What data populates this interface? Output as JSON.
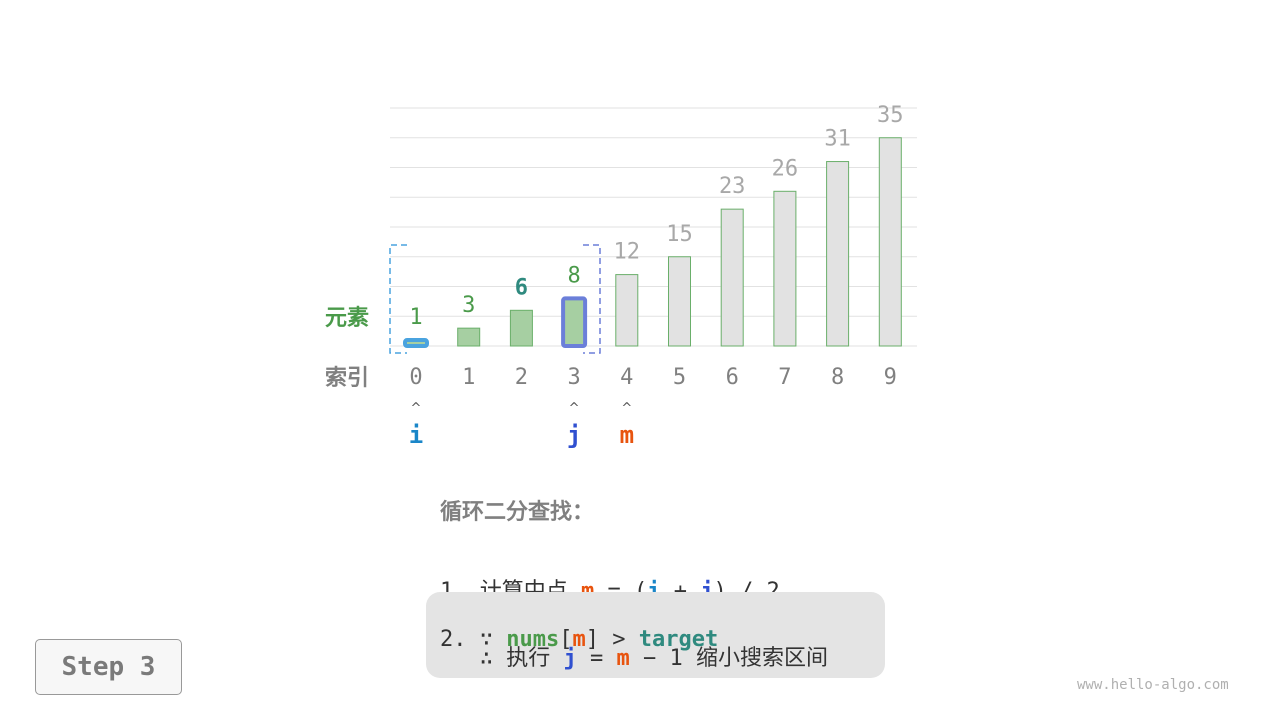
{
  "chart_data": {
    "type": "bar",
    "categories": [
      "0",
      "1",
      "2",
      "3",
      "4",
      "5",
      "6",
      "7",
      "8",
      "9"
    ],
    "values": [
      1,
      3,
      6,
      8,
      12,
      15,
      23,
      26,
      31,
      35
    ],
    "ylim": [
      0,
      40
    ],
    "grid": true,
    "row_labels": {
      "elements": "元素",
      "index": "索引"
    },
    "active_range": [
      0,
      3
    ],
    "target_index": 2,
    "pointers": [
      {
        "name": "i",
        "index": 0,
        "color": "#1a86c8"
      },
      {
        "name": "j",
        "index": 3,
        "color": "#3050d0"
      },
      {
        "name": "m",
        "index": 4,
        "color": "#e8540f"
      }
    ],
    "colors": {
      "active_fill": "#a6cfa2",
      "inactive_fill": "#e2e2e2",
      "bar_stroke": "#6aaf6a",
      "active_label": "#4a9a4a",
      "target_label": "#2f8a7f",
      "inactive_label": "#a8a8a8",
      "i_border": "#4aa3df",
      "j_border": "#6b7fd9"
    },
    "pointer_arrow": "^"
  },
  "explanation": {
    "title": "循环二分查找：",
    "step1": {
      "num": "1.",
      "text": "计算中点",
      "m": "m",
      "eq": "=",
      "lp": "(",
      "i": "i",
      "plus": "+",
      "j": "j",
      "rp": ")",
      "div": "/ 2"
    },
    "step2": {
      "num": "2.",
      "because": "∵",
      "nums": "nums",
      "lb": "[",
      "m": "m",
      "rb": "]",
      "gt": ">",
      "target": "target",
      "therefore": "∴",
      "exec": "执行",
      "j": "j",
      "eq": "=",
      "m2": "m",
      "minus": "−",
      "one": "1",
      "shrink": "缩小搜索区间"
    }
  },
  "step_label": "Step 3",
  "watermark": "www.hello-algo.com"
}
